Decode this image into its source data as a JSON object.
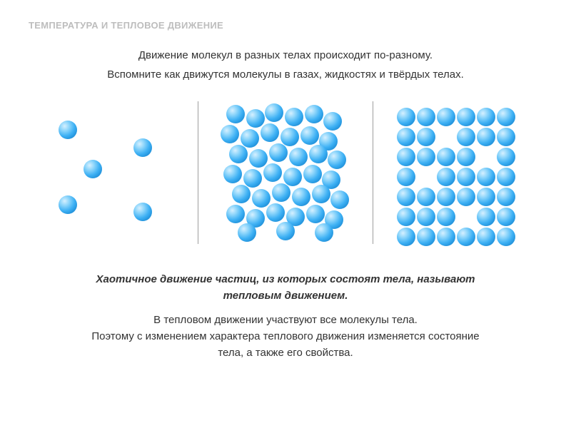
{
  "title": "ТЕМПЕРАТУРА И ТЕПЛОВОЕ ДВИЖЕНИЕ",
  "intro": {
    "line1": "Движение молекул в разных телах происходит по-разному.",
    "line2": "Вспомните как движутся молекулы в газах, жидкостях и твёрдых телах."
  },
  "colors": {
    "title_color": "#bdbdbd",
    "text_color": "#333333",
    "background": "#ffffff",
    "divider_color": "#9e9e9e",
    "molecule_light": "#8fd6fb",
    "molecule_mid": "#3db0f4",
    "molecule_dark": "#1274b6"
  },
  "diagram": {
    "panel_size": 200,
    "divider_height": 200,
    "panels": [
      {
        "name": "gas",
        "molecule_radius": 13,
        "positions": [
          [
            40,
            40
          ],
          [
            75,
            95
          ],
          [
            40,
            145
          ],
          [
            145,
            65
          ],
          [
            145,
            155
          ]
        ]
      },
      {
        "name": "liquid",
        "molecule_radius": 13,
        "positions": [
          [
            30,
            18
          ],
          [
            58,
            24
          ],
          [
            84,
            16
          ],
          [
            112,
            22
          ],
          [
            140,
            18
          ],
          [
            166,
            28
          ],
          [
            22,
            46
          ],
          [
            50,
            52
          ],
          [
            78,
            44
          ],
          [
            106,
            50
          ],
          [
            134,
            48
          ],
          [
            160,
            56
          ],
          [
            34,
            74
          ],
          [
            62,
            80
          ],
          [
            90,
            72
          ],
          [
            118,
            78
          ],
          [
            146,
            74
          ],
          [
            172,
            82
          ],
          [
            26,
            102
          ],
          [
            54,
            108
          ],
          [
            82,
            100
          ],
          [
            110,
            106
          ],
          [
            138,
            102
          ],
          [
            164,
            110
          ],
          [
            38,
            130
          ],
          [
            66,
            136
          ],
          [
            94,
            128
          ],
          [
            122,
            134
          ],
          [
            150,
            130
          ],
          [
            176,
            138
          ],
          [
            30,
            158
          ],
          [
            58,
            164
          ],
          [
            86,
            156
          ],
          [
            114,
            162
          ],
          [
            142,
            158
          ],
          [
            168,
            166
          ],
          [
            46,
            184
          ],
          [
            100,
            182
          ],
          [
            154,
            184
          ]
        ]
      },
      {
        "name": "solid",
        "molecule_radius": 13,
        "positions": [
          [
            24,
            22
          ],
          [
            52,
            22
          ],
          [
            80,
            22
          ],
          [
            108,
            22
          ],
          [
            136,
            22
          ],
          [
            164,
            22
          ],
          [
            24,
            50
          ],
          [
            52,
            50
          ],
          [
            108,
            50
          ],
          [
            136,
            50
          ],
          [
            164,
            50
          ],
          [
            24,
            78
          ],
          [
            52,
            78
          ],
          [
            80,
            78
          ],
          [
            108,
            78
          ],
          [
            164,
            78
          ],
          [
            24,
            106
          ],
          [
            80,
            106
          ],
          [
            108,
            106
          ],
          [
            136,
            106
          ],
          [
            164,
            106
          ],
          [
            24,
            134
          ],
          [
            52,
            134
          ],
          [
            80,
            134
          ],
          [
            108,
            134
          ],
          [
            136,
            134
          ],
          [
            164,
            134
          ],
          [
            24,
            162
          ],
          [
            52,
            162
          ],
          [
            80,
            162
          ],
          [
            136,
            162
          ],
          [
            164,
            162
          ],
          [
            24,
            190
          ],
          [
            52,
            190
          ],
          [
            80,
            190
          ],
          [
            108,
            190
          ],
          [
            136,
            190
          ],
          [
            164,
            190
          ]
        ]
      }
    ]
  },
  "conclusion": {
    "bold_line1": "Хаотичное движение частиц, из которых состоят тела, называют",
    "bold_line2": "тепловым движением.",
    "line3": "В тепловом движении участвуют все молекулы тела.",
    "line4": "Поэтому с изменением характера теплового движения изменяется состояние",
    "line5": "тела, а также его свойства."
  },
  "typography": {
    "title_fontsize": 13,
    "body_fontsize": 15,
    "title_weight": "bold"
  }
}
